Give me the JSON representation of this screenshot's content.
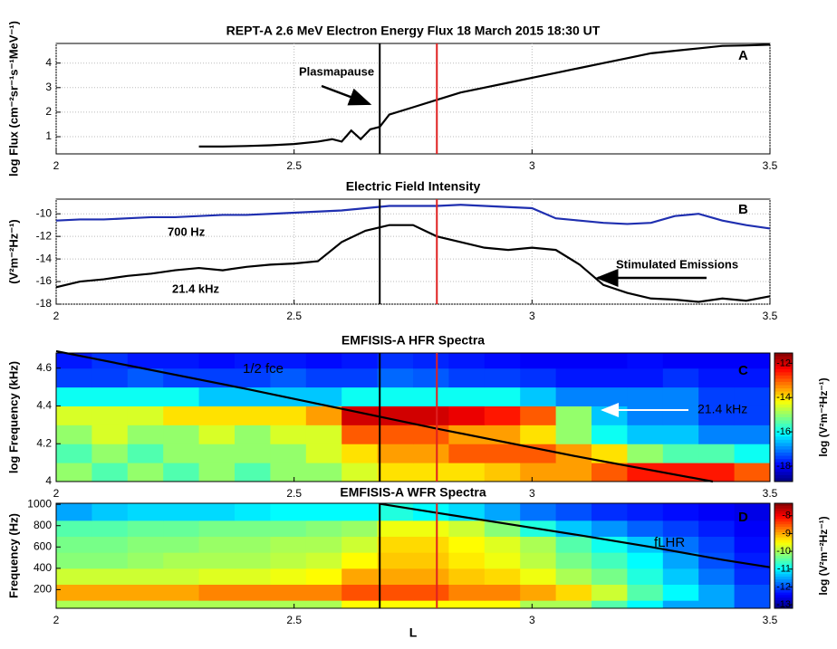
{
  "chart_data": [
    {
      "type": "line",
      "title": "REPT-A 2.6 MeV Electron Energy Flux  18 March 2015 18:30 UT",
      "ylabel": "log Flux (cm⁻²sr⁻¹s⁻¹MeV⁻¹)",
      "xlim": [
        2,
        3.5
      ],
      "xticks": [
        2,
        2.5,
        3,
        3.5
      ],
      "ylim": [
        0.3,
        4.8
      ],
      "yticks": [
        1,
        2,
        3,
        4
      ],
      "grid": true,
      "vlines": [
        {
          "x": 2.68,
          "color": "#000000"
        },
        {
          "x": 2.8,
          "color": "#e02020"
        }
      ],
      "annotations": [
        "Plasmapause",
        "A"
      ],
      "series": [
        {
          "color": "#000000",
          "x": [
            2.3,
            2.35,
            2.4,
            2.45,
            2.5,
            2.55,
            2.58,
            2.6,
            2.62,
            2.64,
            2.66,
            2.68,
            2.7,
            2.75,
            2.8,
            2.85,
            2.9,
            2.95,
            3.0,
            3.05,
            3.1,
            3.15,
            3.2,
            3.25,
            3.3,
            3.35,
            3.4,
            3.45,
            3.5
          ],
          "values": [
            0.6,
            0.6,
            0.62,
            0.65,
            0.7,
            0.8,
            0.9,
            0.8,
            1.25,
            0.9,
            1.3,
            1.4,
            1.9,
            2.2,
            2.5,
            2.8,
            3.0,
            3.2,
            3.4,
            3.6,
            3.8,
            4.0,
            4.2,
            4.4,
            4.5,
            4.6,
            4.7,
            4.72,
            4.75
          ]
        }
      ]
    },
    {
      "type": "line",
      "title": "Electric Field Intensity",
      "ylabel": "(V²m⁻²Hz⁻¹)",
      "xlim": [
        2,
        3.5
      ],
      "xticks": [
        2,
        2.5,
        3,
        3.5
      ],
      "ylim": [
        -18,
        -8.7
      ],
      "yticks": [
        -18,
        -16,
        -14,
        -12,
        -10
      ],
      "grid": true,
      "vlines": [
        {
          "x": 2.68,
          "color": "#000000"
        },
        {
          "x": 2.8,
          "color": "#e02020"
        }
      ],
      "annotations": [
        "700 Hz",
        "21.4 kHz",
        "Stimulated Emissions",
        "B"
      ],
      "series": [
        {
          "name": "700 Hz",
          "color": "#1f2fb0",
          "x": [
            2,
            2.05,
            2.1,
            2.15,
            2.2,
            2.25,
            2.3,
            2.35,
            2.4,
            2.45,
            2.5,
            2.55,
            2.6,
            2.65,
            2.7,
            2.75,
            2.8,
            2.85,
            2.9,
            2.95,
            3.0,
            3.05,
            3.1,
            3.15,
            3.2,
            3.25,
            3.3,
            3.35,
            3.4,
            3.45,
            3.5
          ],
          "values": [
            -10.6,
            -10.5,
            -10.5,
            -10.4,
            -10.3,
            -10.3,
            -10.2,
            -10.1,
            -10.1,
            -10.0,
            -9.9,
            -9.8,
            -9.7,
            -9.5,
            -9.3,
            -9.3,
            -9.3,
            -9.2,
            -9.3,
            -9.4,
            -9.5,
            -10.4,
            -10.6,
            -10.8,
            -10.9,
            -10.8,
            -10.2,
            -10.0,
            -10.6,
            -11.0,
            -11.3
          ]
        },
        {
          "name": "21.4 kHz",
          "color": "#000000",
          "x": [
            2,
            2.05,
            2.1,
            2.15,
            2.2,
            2.25,
            2.3,
            2.35,
            2.4,
            2.45,
            2.5,
            2.55,
            2.6,
            2.65,
            2.7,
            2.75,
            2.8,
            2.85,
            2.9,
            2.95,
            3.0,
            3.05,
            3.1,
            3.15,
            3.2,
            3.25,
            3.3,
            3.35,
            3.4,
            3.45,
            3.5
          ],
          "values": [
            -16.5,
            -16.0,
            -15.8,
            -15.5,
            -15.3,
            -15.0,
            -14.8,
            -15.0,
            -14.7,
            -14.5,
            -14.4,
            -14.2,
            -12.5,
            -11.5,
            -11.0,
            -11.0,
            -12.0,
            -12.5,
            -13.0,
            -13.2,
            -13.0,
            -13.2,
            -14.5,
            -16.3,
            -17.0,
            -17.5,
            -17.6,
            -17.8,
            -17.5,
            -17.7,
            -17.3
          ]
        }
      ]
    },
    {
      "type": "heatmap",
      "title": "EMFISIS-A HFR Spectra",
      "ylabel": "log Frequency (kHz)",
      "zlabel": "log (V²m⁻²Hz⁻¹)",
      "xlim": [
        2,
        3.5
      ],
      "xticks": [
        2,
        2.5,
        3,
        3.5
      ],
      "ylim": [
        4,
        4.68
      ],
      "yticks": [
        4,
        4.2,
        4.4,
        4.6
      ],
      "zlim": [
        -18.9,
        -11.4
      ],
      "zticks": [
        -18,
        -16,
        -14,
        -12
      ],
      "x_edges": [
        2,
        2.075,
        2.15,
        2.225,
        2.3,
        2.375,
        2.45,
        2.525,
        2.6,
        2.675,
        2.75,
        2.825,
        2.9,
        2.975,
        3.05,
        3.125,
        3.2,
        3.275,
        3.35,
        3.425,
        3.5
      ],
      "y_edges": [
        4.0,
        4.1,
        4.2,
        4.3,
        4.4,
        4.5,
        4.6,
        4.68
      ],
      "z": [
        [
          -15,
          -15.5,
          -15,
          -15.5,
          -15,
          -15.5,
          -15,
          -15,
          -14.5,
          -14,
          -14,
          -14,
          -13.8,
          -13.5,
          -13.5,
          -13,
          -12.5,
          -12.5,
          -12.5,
          -13
        ],
        [
          -15.5,
          -15,
          -15.5,
          -15,
          -15,
          -15,
          -15,
          -14.5,
          -14,
          -13.5,
          -13.5,
          -13,
          -13,
          -13,
          -13.5,
          -14,
          -15,
          -15.5,
          -15.5,
          -16
        ],
        [
          -15,
          -14.5,
          -15,
          -15,
          -14.5,
          -15,
          -14.5,
          -14.5,
          -13,
          -13,
          -13,
          -13.5,
          -13.5,
          -14,
          -15,
          -16,
          -16.5,
          -16.5,
          -17,
          -17
        ],
        [
          -14.5,
          -14.5,
          -14.5,
          -14,
          -14,
          -14,
          -14,
          -13.5,
          -12,
          -12,
          -12,
          -12.2,
          -12.5,
          -13,
          -15,
          -16.5,
          -17,
          -17,
          -17.5,
          -17.5
        ],
        [
          -16,
          -16,
          -16,
          -16,
          -16.5,
          -16.5,
          -16.5,
          -16.5,
          -16,
          -16,
          -16,
          -16,
          -16,
          -16.5,
          -17,
          -17,
          -17,
          -17,
          -17.5,
          -17.5
        ],
        [
          -17.5,
          -17.5,
          -17.3,
          -17.5,
          -17.5,
          -17.5,
          -17.3,
          -17.5,
          -17.5,
          -17.2,
          -17.3,
          -17.5,
          -17.5,
          -17.6,
          -17.8,
          -17.8,
          -17.8,
          -17.6,
          -17.8,
          -17.8
        ],
        [
          -17.8,
          -17.6,
          -17.8,
          -17.8,
          -17.9,
          -17.8,
          -17.8,
          -17.9,
          -17.8,
          -17.6,
          -17.7,
          -17.8,
          -17.9,
          -18,
          -18,
          -18,
          -17.9,
          -18,
          -18,
          -18
        ]
      ],
      "vlines": [
        {
          "x": 2.68,
          "color": "#000000"
        },
        {
          "x": 2.8,
          "color": "#e02020"
        }
      ],
      "annotations": [
        "1/2 fce",
        "21.4 kHz",
        "C"
      ],
      "series": [
        {
          "name": "1/2 fce",
          "color": "#000000",
          "x": [
            2,
            2.4,
            2.8,
            3.1,
            3.38
          ],
          "values": [
            4.69,
            4.49,
            4.28,
            4.13,
            4.0
          ]
        }
      ]
    },
    {
      "type": "heatmap",
      "title": "EMFISIS-A WFR Spectra",
      "ylabel": "Frequency (Hz)",
      "xlabel": "L",
      "zlabel": "log (V²m⁻²Hz⁻¹)",
      "xlim": [
        2,
        3.5
      ],
      "xticks": [
        2,
        2.5,
        3,
        3.5
      ],
      "ylim": [
        25,
        1010
      ],
      "yticks": [
        200,
        400,
        600,
        800,
        1000
      ],
      "zlim": [
        -13.2,
        -7.3
      ],
      "zticks": [
        -13,
        -12,
        -11,
        -10,
        -9,
        -8
      ],
      "x_edges": [
        2,
        2.075,
        2.15,
        2.225,
        2.3,
        2.375,
        2.45,
        2.525,
        2.6,
        2.675,
        2.75,
        2.825,
        2.9,
        2.975,
        3.05,
        3.125,
        3.2,
        3.275,
        3.35,
        3.425,
        3.5
      ],
      "y_edges": [
        25,
        100,
        250,
        400,
        550,
        700,
        850,
        1010
      ],
      "z": [
        [
          -10,
          -10,
          -10,
          -10,
          -10,
          -10,
          -10,
          -10,
          -9.5,
          -9.5,
          -9.5,
          -9.5,
          -9.5,
          -10,
          -10,
          -10.5,
          -11,
          -11.5,
          -11.5,
          -12
        ],
        [
          -9,
          -9,
          -9,
          -9,
          -8.8,
          -8.8,
          -8.8,
          -8.8,
          -8.5,
          -8.5,
          -8.5,
          -8.8,
          -8.8,
          -9,
          -9.3,
          -9.8,
          -10.5,
          -11,
          -11.5,
          -12
        ],
        [
          -9.8,
          -9.8,
          -9.8,
          -9.8,
          -9.7,
          -9.7,
          -9.6,
          -9.5,
          -9,
          -9,
          -9,
          -9.2,
          -9.3,
          -9.6,
          -10,
          -10.3,
          -10.8,
          -11.3,
          -11.8,
          -12.2
        ],
        [
          -10.2,
          -10.2,
          -10.1,
          -10,
          -10,
          -10,
          -9.9,
          -9.8,
          -9.5,
          -9.2,
          -9.2,
          -9.4,
          -9.6,
          -9.9,
          -10.3,
          -10.6,
          -11,
          -11.5,
          -12,
          -12.3
        ],
        [
          -10.3,
          -10.3,
          -10.2,
          -10.2,
          -10.1,
          -10.1,
          -10,
          -10,
          -9.8,
          -9.3,
          -9.3,
          -9.5,
          -9.7,
          -10,
          -10.5,
          -10.9,
          -11.3,
          -11.8,
          -12.1,
          -12.4
        ],
        [
          -10.5,
          -10.5,
          -10.4,
          -10.4,
          -10.3,
          -10.3,
          -10.3,
          -10.2,
          -10.1,
          -9.6,
          -9.6,
          -9.8,
          -10.2,
          -10.8,
          -11.3,
          -11.6,
          -11.9,
          -12.1,
          -12.3,
          -12.5
        ],
        [
          -11.5,
          -11.3,
          -11.2,
          -11.2,
          -11.2,
          -11.1,
          -11,
          -11,
          -11,
          -10.8,
          -11,
          -11.2,
          -11.5,
          -11.8,
          -12,
          -12.2,
          -12.3,
          -12.4,
          -12.5,
          -12.6
        ]
      ],
      "vlines": [
        {
          "x": 2.68,
          "color": "#000000"
        },
        {
          "x": 2.8,
          "color": "#e02020"
        }
      ],
      "annotations": [
        "fLHR",
        "D"
      ],
      "series": [
        {
          "name": "fLHR",
          "color": "#000000",
          "x": [
            2.68,
            2.8,
            2.95,
            3.1,
            3.25,
            3.4,
            3.5
          ],
          "values": [
            1005,
            920,
            815,
            710,
            600,
            480,
            410
          ]
        }
      ]
    }
  ]
}
